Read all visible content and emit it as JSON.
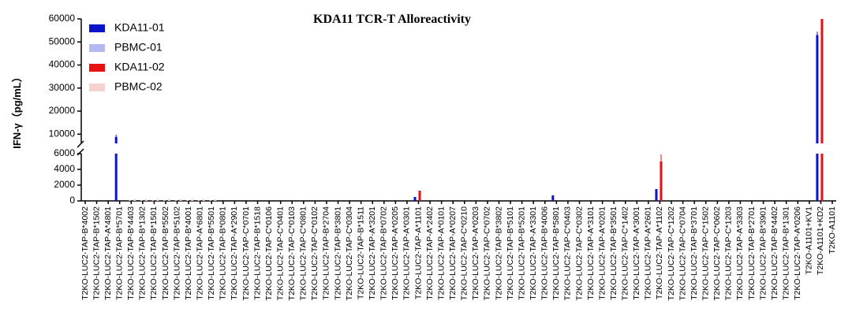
{
  "chart_data": {
    "type": "bar",
    "title": "KDA11 TCR-T Alloreactivity",
    "y_label": "IFN-γ（pg/mL）",
    "categories": [
      "T2KO-LUC2-TAP-B*4002",
      "T2KO-LUC2-TAP-B*1502",
      "T2KO-LUC2-TAP-A*4801",
      "T2KO-LUC2-TAP-B*5701",
      "T2KO-LUC2-TAP-B*4403",
      "T2KO-LUC2-TAP-B*1302",
      "T2KO-LUC2-TAP-B*1501",
      "T2KO-LUC2-TAP-B*5502",
      "T2KO-LUC2-TAP-B*5102",
      "T2KO-LUC2-TAP-B*4001",
      "T2KO-LUC2-TAP-A*6801",
      "T2KO-LUC2-TAP-B*5501",
      "T2KO-LUC2-TAP-B*0801",
      "T2KO-LUC2-TAP-A*2901",
      "T2KO-LUC2-TAP-C*0701",
      "T2KO-LUC2-TAP-B*1518",
      "T2KO-LUC2-TAP-C*0106",
      "T2KO-LUC2-TAP-C*0401",
      "T2KO-LUC2-TAP-C*0103",
      "T2KO-LUC2-TAP-C*0801",
      "T2KO-LUC2-TAP-C*0102",
      "T2KO-LUC2-TAP-B*2704",
      "T2KO-LUC2-TAP-B*3801",
      "T2KO-LUC2-TAP-C*0304",
      "T2KO-LUC2-TAP-B*1511",
      "T2KO-LUC2-TAP-A*3201",
      "T2KO-LUC2-TAP-B*0702",
      "T2KO-LUC2-TAP-A*0205",
      "T2KO-LUC2-TAP-A*0301",
      "T2KO-LUC2-TAP-A*1101",
      "T2KO-LUC2-TAP-A*2402",
      "T2KO-LUC2-TAP-A*0101",
      "T2KO-LUC2-TAP-A*0207",
      "T2KO-LUC2-TAP-C*0210",
      "T2KO-LUC2-TAP-A*0203",
      "T2KO-LUC2-TAP-C*0702",
      "T2KO-LUC2-TAP-B*3802",
      "T2KO-LUC2-TAP-B*5101",
      "T2KO-LUC2-TAP-B*5201",
      "T2KO-LUC2-TAP-A*3301",
      "T2KO-LUC2-TAP-B*4006",
      "T2KO-LUC2-TAP-B*5801",
      "T2KO-LUC2-TAP-C*0403",
      "T2KO-LUC2-TAP-C*0302",
      "T2KO-LUC2-TAP-A*3101",
      "T2KO-LUC2-TAP-A*0201",
      "T2KO-LUC2-TAP-B*3501",
      "T2KO-LUC2-TAP-C*1402",
      "T2KO-LUC2-TAP-A*3001",
      "T2KO-LUC2-TAP-A*2601",
      "T2KO-LUC2-TAP-A*1102",
      "T2KO-LUC2-TAP-C*1202",
      "T2KO-LUC2-TAP-C*0704",
      "T2KO-LUC2-TAP-B*3701",
      "T2KO-LUC2-TAP-C*1502",
      "T2KO-LUC2-TAP-C*0602",
      "T2KO-LUC2-TAP-C*1203",
      "T2KO-LUC2-TAP-A*3303",
      "T2KO-LUC2-TAP-B*2701",
      "T2KO-LUC2-TAP-B*3901",
      "T2KO-LUC2-TAP-B*4402",
      "T2KO-LUC2-TAP-B*1301",
      "T2KO-LUC2-TAP-A*0206",
      "T2KO-A1101+KV1",
      "T2KO-A1101+KD2",
      "T2KO-A1101"
    ],
    "series": [
      {
        "name": "KDA11-01",
        "color": "#0a14c8",
        "values": [
          0,
          0,
          0,
          8800,
          0,
          0,
          0,
          0,
          0,
          0,
          0,
          0,
          0,
          0,
          0,
          0,
          0,
          0,
          0,
          0,
          0,
          0,
          0,
          0,
          0,
          0,
          0,
          0,
          0,
          500,
          0,
          0,
          0,
          0,
          0,
          0,
          0,
          0,
          0,
          0,
          0,
          700,
          0,
          0,
          0,
          0,
          0,
          0,
          0,
          0,
          1500,
          0,
          0,
          0,
          0,
          0,
          0,
          0,
          0,
          0,
          0,
          0,
          0,
          0,
          53000,
          0
        ],
        "errors": [
          null,
          null,
          null,
          1000,
          null,
          null,
          null,
          null,
          null,
          null,
          null,
          null,
          null,
          null,
          null,
          null,
          null,
          null,
          null,
          null,
          null,
          null,
          null,
          null,
          null,
          null,
          null,
          null,
          null,
          null,
          null,
          null,
          null,
          null,
          null,
          null,
          null,
          null,
          null,
          null,
          null,
          null,
          null,
          null,
          null,
          null,
          null,
          null,
          null,
          null,
          null,
          null,
          null,
          null,
          null,
          null,
          null,
          null,
          null,
          null,
          null,
          null,
          null,
          null,
          1500,
          null
        ]
      },
      {
        "name": "PBMC-01",
        "color": "#b8b8f0",
        "values": [
          0,
          0,
          0,
          0,
          100,
          100,
          100,
          100,
          100,
          100,
          100,
          100,
          0,
          0,
          0,
          0,
          0,
          0,
          0,
          0,
          0,
          0,
          0,
          0,
          0,
          0,
          0,
          0,
          0,
          0,
          0,
          0,
          0,
          0,
          0,
          0,
          0,
          0,
          0,
          0,
          0,
          0,
          0,
          0,
          0,
          0,
          0,
          0,
          0,
          0,
          0,
          0,
          0,
          0,
          0,
          0,
          0,
          0,
          0,
          0,
          0,
          0,
          0,
          0,
          0,
          0
        ]
      },
      {
        "name": "KDA11-02",
        "color": "#e81010",
        "values": [
          0,
          0,
          0,
          0,
          0,
          0,
          0,
          0,
          0,
          0,
          0,
          0,
          0,
          0,
          0,
          0,
          0,
          0,
          0,
          0,
          0,
          0,
          0,
          0,
          0,
          0,
          0,
          0,
          0,
          1300,
          0,
          0,
          0,
          0,
          0,
          0,
          0,
          0,
          0,
          0,
          0,
          0,
          0,
          0,
          0,
          0,
          0,
          0,
          0,
          0,
          5000,
          0,
          0,
          0,
          0,
          0,
          0,
          0,
          0,
          0,
          0,
          0,
          0,
          0,
          60000,
          0
        ],
        "errors": [
          null,
          null,
          null,
          null,
          null,
          null,
          null,
          null,
          null,
          null,
          null,
          null,
          null,
          null,
          null,
          null,
          null,
          null,
          null,
          null,
          null,
          null,
          null,
          null,
          null,
          null,
          null,
          null,
          null,
          null,
          null,
          null,
          null,
          null,
          null,
          null,
          null,
          null,
          null,
          null,
          null,
          null,
          null,
          null,
          null,
          null,
          null,
          null,
          null,
          null,
          900,
          null,
          null,
          null,
          null,
          null,
          null,
          null,
          null,
          null,
          null,
          null,
          null,
          null,
          null,
          null
        ]
      },
      {
        "name": "PBMC-02",
        "color": "#f8d0d0",
        "values": [
          0,
          0,
          0,
          0,
          200,
          200,
          200,
          200,
          200,
          200,
          200,
          200,
          0,
          0,
          0,
          0,
          0,
          0,
          0,
          0,
          0,
          0,
          0,
          0,
          0,
          0,
          0,
          0,
          0,
          0,
          0,
          0,
          0,
          0,
          0,
          0,
          0,
          0,
          0,
          0,
          0,
          0,
          0,
          0,
          0,
          0,
          0,
          0,
          0,
          0,
          0,
          0,
          0,
          0,
          0,
          0,
          0,
          0,
          0,
          0,
          0,
          0,
          0,
          0,
          0,
          0
        ]
      }
    ],
    "y_segments": [
      {
        "ylim": [
          0,
          6000
        ],
        "yticks": [
          0,
          2000,
          4000,
          6000
        ]
      },
      {
        "ylim": [
          6000,
          60000
        ],
        "yticks": [
          10000,
          20000,
          30000,
          40000,
          50000,
          60000
        ]
      }
    ],
    "legend": "top-left"
  }
}
